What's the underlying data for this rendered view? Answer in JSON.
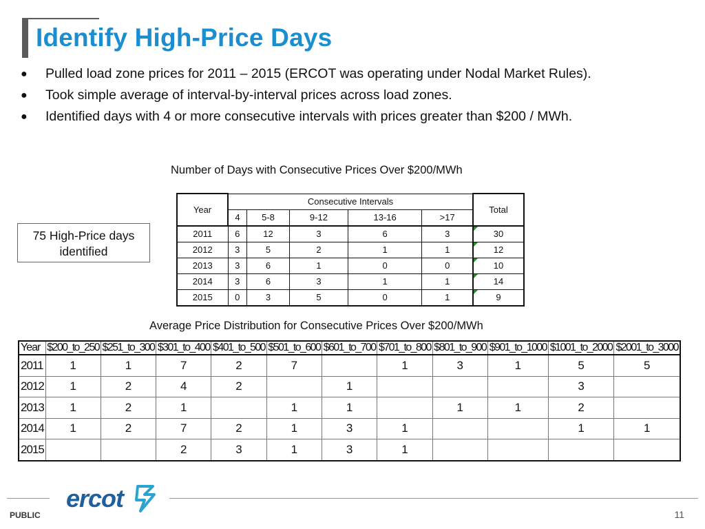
{
  "slide": {
    "title": "Identify High-Price Days",
    "bullets": [
      "Pulled load zone prices for 2011 – 2015 (ERCOT was operating under Nodal Market Rules).",
      "Took simple average of interval-by-interval prices across load zones.",
      "Identified days with 4 or more consecutive intervals with prices greater than $200 / MWh."
    ],
    "callout": "75 High-Price days identified",
    "caption1": "Number of Days with Consecutive Prices Over $200/MWh",
    "caption2": "Average Price Distribution for Consecutive Prices Over $200/MWh"
  },
  "days_table": {
    "year_header": "Year",
    "group_header": "Consecutive Intervals",
    "total_header": "Total",
    "interval_headers": [
      "4",
      "5-8",
      "9-12",
      "13-16",
      ">17"
    ],
    "rows": [
      {
        "year": "2011",
        "values": [
          "6",
          "12",
          "3",
          "6",
          "3"
        ],
        "total": "30"
      },
      {
        "year": "2012",
        "values": [
          "3",
          "5",
          "2",
          "1",
          "1"
        ],
        "total": "12"
      },
      {
        "year": "2013",
        "values": [
          "3",
          "6",
          "1",
          "0",
          "0"
        ],
        "total": "10"
      },
      {
        "year": "2014",
        "values": [
          "3",
          "6",
          "3",
          "1",
          "1"
        ],
        "total": "14"
      },
      {
        "year": "2015",
        "values": [
          "0",
          "3",
          "5",
          "0",
          "1"
        ],
        "total": "9"
      }
    ]
  },
  "price_table": {
    "headers": [
      "Year",
      "$200_to_250",
      "$251_to_300",
      "$301_to_400",
      "$401_to_500",
      "$501_to_600",
      "$601_to_700",
      "$701_to_800",
      "$801_to_900",
      "$901_to_1000",
      "$1001_to_2000",
      "$2001_to_3000"
    ],
    "rows": [
      [
        "2011",
        "1",
        "1",
        "7",
        "2",
        "7",
        "",
        "1",
        "3",
        "1",
        "5",
        "5"
      ],
      [
        "2012",
        "1",
        "2",
        "4",
        "2",
        "",
        "1",
        "",
        "",
        "",
        "3",
        ""
      ],
      [
        "2013",
        "1",
        "2",
        "1",
        "",
        "1",
        "1",
        "",
        "1",
        "1",
        "2",
        ""
      ],
      [
        "2014",
        "1",
        "2",
        "7",
        "2",
        "1",
        "3",
        "1",
        "",
        "",
        "1",
        "1"
      ],
      [
        "2015",
        "",
        "",
        "2",
        "3",
        "1",
        "3",
        "1",
        "",
        "",
        "",
        ""
      ]
    ]
  },
  "footer": {
    "logo_text": "ercot",
    "classification": "PUBLIC",
    "page_number": "11"
  },
  "colors": {
    "title": "#1b8ed0",
    "logo": "#1f5f9c",
    "logo_bolt": "#2aa3cf",
    "marker": "#2e8b2e"
  }
}
